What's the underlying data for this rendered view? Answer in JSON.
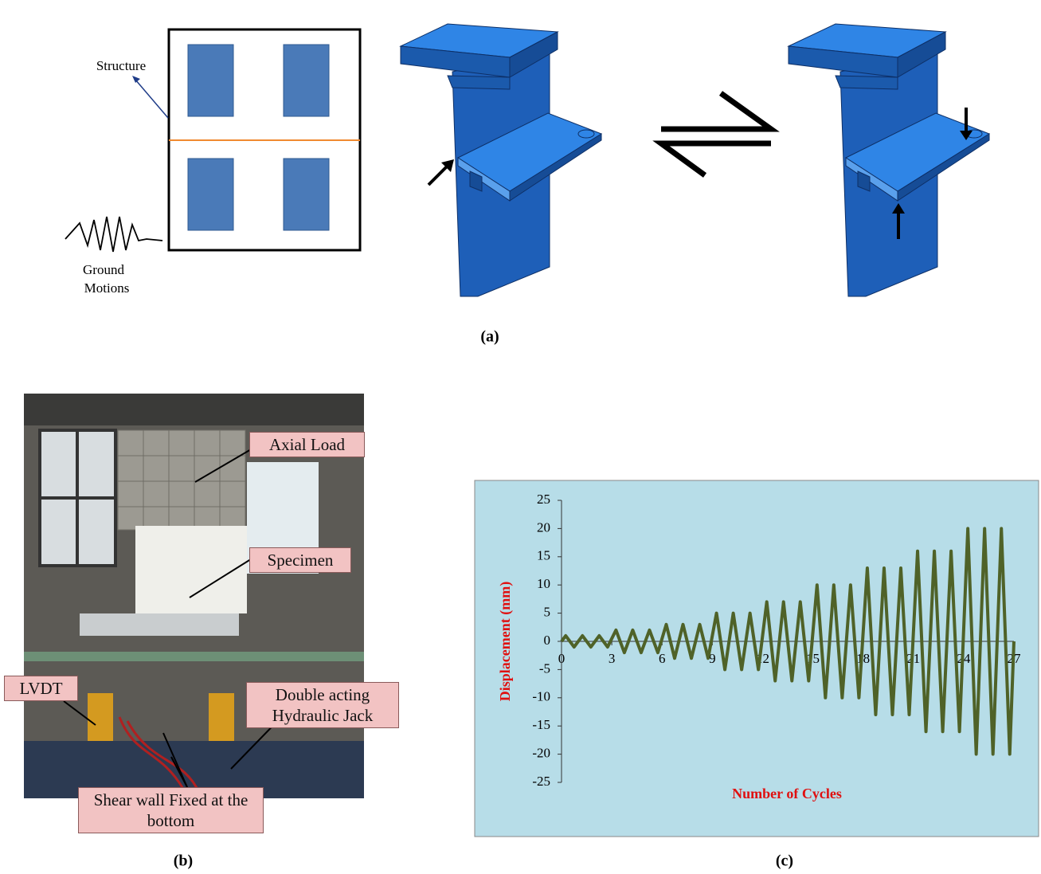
{
  "panel_a": {
    "label": "(a)",
    "structure_label": "Structure",
    "ground_motion_lines": [
      "Ground",
      "Motions"
    ]
  },
  "panel_b": {
    "label": "(b)",
    "callouts": [
      "Axial Load",
      "Specimen",
      "LVDT",
      "Double acting Hydraulic Jack",
      "Shear wall Fixed at the bottom"
    ]
  },
  "panel_c": {
    "label": "(c)"
  },
  "chart_data": {
    "type": "line",
    "x_label": "Number of Cycles",
    "y_label": "Displacement (mm)",
    "x": [
      0,
      0.25,
      0.75,
      1.25,
      1.75,
      2.25,
      2.75,
      3.25,
      3.75,
      4.25,
      4.75,
      5.25,
      5.75,
      6.25,
      6.75,
      7.25,
      7.75,
      8.25,
      8.75,
      9.25,
      9.75,
      10.25,
      10.75,
      11.25,
      11.75,
      12.25,
      12.75,
      13.25,
      13.75,
      14.25,
      14.75,
      15.25,
      15.75,
      16.25,
      16.75,
      17.25,
      17.75,
      18.25,
      18.75,
      19.25,
      19.75,
      20.25,
      20.75,
      21.25,
      21.75,
      22.25,
      22.75,
      23.25,
      23.75,
      24.25,
      24.75,
      25.25,
      25.75,
      26.25,
      26.75,
      27
    ],
    "series": [
      {
        "color": "#4f6228",
        "values": [
          0,
          1,
          -1,
          1,
          -1,
          1,
          -1,
          2,
          -2,
          2,
          -2,
          2,
          -2,
          3,
          -3,
          3,
          -3,
          3,
          -3,
          5,
          -5,
          5,
          -5,
          5,
          -5,
          7,
          -7,
          7,
          -7,
          7,
          -7,
          10,
          -10,
          10,
          -10,
          10,
          -10,
          13,
          -13,
          13,
          -13,
          13,
          -13,
          16,
          -16,
          16,
          -16,
          16,
          -16,
          20,
          -20,
          20,
          -20,
          20,
          -20,
          0
        ]
      }
    ],
    "xlim": [
      0,
      27
    ],
    "xticks": [
      0,
      3,
      6,
      9,
      12,
      15,
      18,
      21,
      24,
      27
    ],
    "ylim": [
      -25,
      25
    ],
    "yticks": [
      -25,
      -20,
      -15,
      -10,
      -5,
      0,
      5,
      10,
      15,
      20,
      25
    ]
  }
}
